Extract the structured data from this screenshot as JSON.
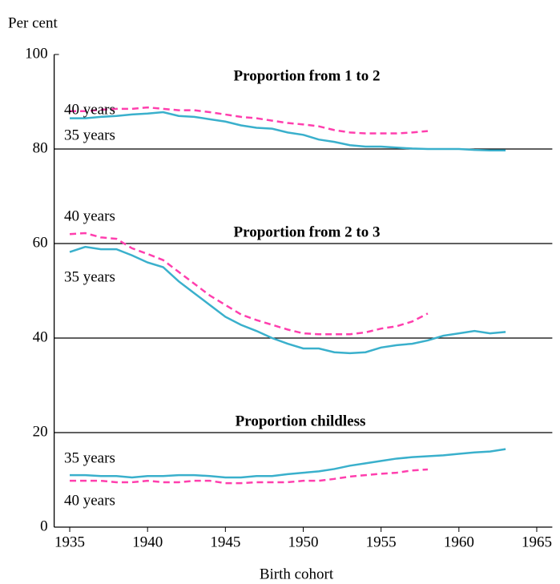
{
  "chart_data": {
    "type": "line",
    "y_label": "Per cent",
    "x_label": "Birth cohort",
    "annotations": [
      "Proportion from 1 to 2",
      "Proportion from 2 to 3",
      "Proportion childless"
    ],
    "x": [
      1935,
      1936,
      1937,
      1938,
      1939,
      1940,
      1941,
      1942,
      1943,
      1944,
      1945,
      1946,
      1947,
      1948,
      1949,
      1950,
      1951,
      1952,
      1953,
      1954,
      1955,
      1956,
      1957,
      1958,
      1959,
      1960,
      1961,
      1962,
      1963
    ],
    "xlim": [
      1934,
      1966
    ],
    "xticks": [
      1935,
      1940,
      1945,
      1950,
      1955,
      1960,
      1965
    ],
    "ylim": [
      0,
      100
    ],
    "yticks": [
      0,
      20,
      40,
      60,
      80,
      100
    ],
    "grid": true,
    "series": [
      {
        "name": "40 years",
        "color": "#ff3fae",
        "dashed": true,
        "values": [
          88,
          88,
          88.3,
          88.5,
          88.5,
          88.8,
          88.5,
          88.2,
          88.2,
          87.8,
          87.3,
          86.8,
          86.5,
          86,
          85.5,
          85.2,
          84.8,
          84,
          83.5,
          83.3,
          83.3,
          83.3,
          83.5,
          83.8,
          null,
          null,
          null,
          null,
          null
        ]
      },
      {
        "name": "35 years",
        "color": "#3ab0cc",
        "dashed": false,
        "values": [
          86.5,
          86.5,
          86.8,
          87,
          87.3,
          87.5,
          87.8,
          87,
          86.8,
          86.3,
          85.8,
          85,
          84.5,
          84.3,
          83.5,
          83,
          82,
          81.5,
          80.8,
          80.5,
          80.5,
          80.3,
          80.1,
          80,
          80,
          80,
          79.8,
          79.7,
          79.7
        ]
      },
      {
        "name": "40 years",
        "color": "#ff3fae",
        "dashed": true,
        "values": [
          62,
          62.2,
          61.3,
          61,
          59,
          57.8,
          56.5,
          54,
          51.5,
          49,
          47,
          45,
          43.8,
          42.8,
          41.8,
          41,
          40.8,
          40.8,
          40.8,
          41.2,
          42,
          42.5,
          43.5,
          45.2,
          null,
          null,
          null,
          null,
          null
        ]
      },
      {
        "name": "35 years",
        "color": "#3ab0cc",
        "dashed": false,
        "values": [
          58.2,
          59.3,
          58.8,
          58.8,
          57.5,
          56,
          55,
          52,
          49.5,
          47,
          44.5,
          42.8,
          41.5,
          40,
          38.8,
          37.8,
          37.8,
          37,
          36.8,
          37,
          38,
          38.5,
          38.8,
          39.5,
          40.5,
          41,
          41.5,
          41,
          41.3
        ]
      },
      {
        "name": "35 years",
        "color": "#3ab0cc",
        "dashed": false,
        "values": [
          11,
          11,
          10.8,
          10.8,
          10.5,
          10.8,
          10.8,
          11,
          11,
          10.8,
          10.5,
          10.5,
          10.8,
          10.8,
          11.2,
          11.5,
          11.8,
          12.3,
          13,
          13.5,
          14,
          14.5,
          14.8,
          15,
          15.2,
          15.5,
          15.8,
          16,
          16.5
        ]
      },
      {
        "name": "40 years",
        "color": "#ff3fae",
        "dashed": true,
        "values": [
          9.8,
          9.8,
          9.8,
          9.5,
          9.5,
          9.8,
          9.5,
          9.5,
          9.8,
          9.8,
          9.3,
          9.3,
          9.5,
          9.5,
          9.5,
          9.8,
          9.8,
          10.2,
          10.7,
          11,
          11.3,
          11.5,
          12,
          12.2,
          null,
          null,
          null,
          null,
          null
        ]
      }
    ]
  }
}
